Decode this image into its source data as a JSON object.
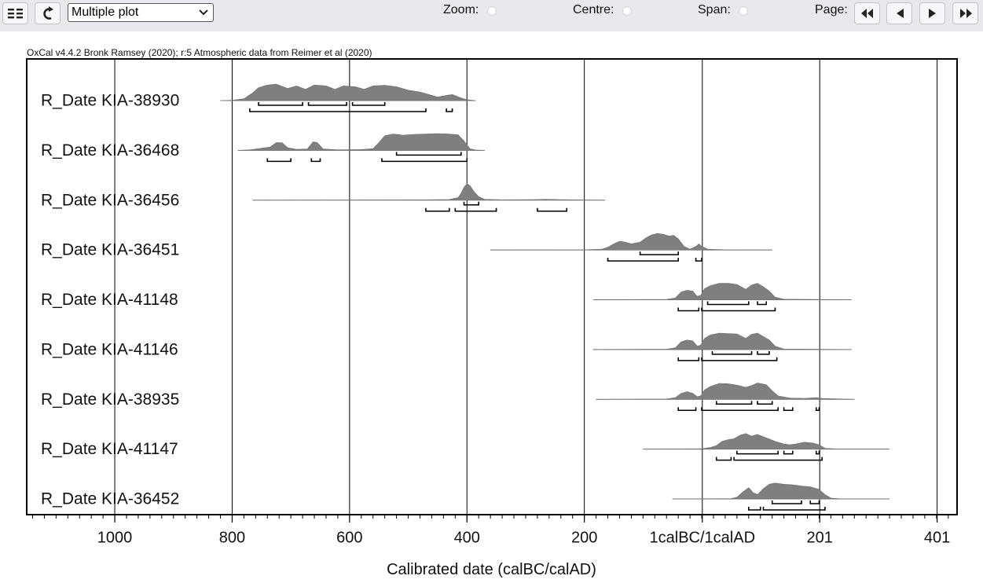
{
  "toolbar": {
    "menu_icon": "grid-menu-icon",
    "refresh_icon": "refresh-icon",
    "plot_select_value": "Multiple plot",
    "zoom_label": "Zoom:",
    "centre_label": "Centre:",
    "span_label": "Span:",
    "page_label": "Page:",
    "page_buttons": [
      "first-page-icon",
      "previous-page-icon",
      "next-page-icon",
      "last-page-icon"
    ]
  },
  "chart_data": {
    "type": "multiple-plot",
    "caption": "OxCal v4.4.2 Bronk Ramsey (2020); r:5 Atmospheric data from Reimer et al (2020)",
    "xlabel": "Calibrated date (calBC/calAD)",
    "xaxis": {
      "min": -1150,
      "max": 435,
      "ticks": [
        {
          "value": -1000,
          "label": "1000"
        },
        {
          "value": -800,
          "label": "800"
        },
        {
          "value": -600,
          "label": "600"
        },
        {
          "value": -400,
          "label": "400"
        },
        {
          "value": -200,
          "label": "200"
        },
        {
          "value": 1,
          "label": "1calBC/1calAD"
        },
        {
          "value": 201,
          "label": "201"
        },
        {
          "value": 401,
          "label": "401"
        }
      ],
      "minor_step": 20,
      "grid": true
    },
    "dist_color": "#7f7f7f",
    "series": [
      {
        "name": "R_Date KIA-38930",
        "range": [
          -820,
          -385
        ],
        "profile": [
          [
            -820,
            0
          ],
          [
            -800,
            0.02
          ],
          [
            -780,
            0.1
          ],
          [
            -765,
            0.45
          ],
          [
            -755,
            0.75
          ],
          [
            -740,
            0.9
          ],
          [
            -725,
            0.95
          ],
          [
            -705,
            0.7
          ],
          [
            -690,
            0.85
          ],
          [
            -675,
            0.65
          ],
          [
            -660,
            0.9
          ],
          [
            -640,
            0.85
          ],
          [
            -625,
            0.65
          ],
          [
            -610,
            0.85
          ],
          [
            -590,
            0.8
          ],
          [
            -575,
            0.65
          ],
          [
            -560,
            0.85
          ],
          [
            -540,
            0.88
          ],
          [
            -520,
            0.8
          ],
          [
            -500,
            0.6
          ],
          [
            -480,
            0.5
          ],
          [
            -465,
            0.35
          ],
          [
            -450,
            0.2
          ],
          [
            -435,
            0.3
          ],
          [
            -425,
            0.35
          ],
          [
            -410,
            0.15
          ],
          [
            -400,
            0.05
          ],
          [
            -385,
            0
          ]
        ],
        "hpd68": [
          [
            -755,
            -680
          ],
          [
            -670,
            -605
          ],
          [
            -595,
            -540
          ]
        ],
        "hpd95": [
          [
            -770,
            -470
          ],
          [
            -435,
            -425
          ]
        ]
      },
      {
        "name": "R_Date KIA-36468",
        "range": [
          -790,
          -370
        ],
        "profile": [
          [
            -790,
            0
          ],
          [
            -770,
            0.03
          ],
          [
            -750,
            0.12
          ],
          [
            -735,
            0.2
          ],
          [
            -725,
            0.45
          ],
          [
            -715,
            0.45
          ],
          [
            -705,
            0.15
          ],
          [
            -690,
            0.06
          ],
          [
            -672,
            0.08
          ],
          [
            -662,
            0.5
          ],
          [
            -655,
            0.45
          ],
          [
            -645,
            0.08
          ],
          [
            -620,
            0.03
          ],
          [
            -580,
            0.05
          ],
          [
            -560,
            0.1
          ],
          [
            -550,
            0.45
          ],
          [
            -540,
            0.85
          ],
          [
            -525,
            0.95
          ],
          [
            -510,
            0.88
          ],
          [
            -490,
            0.92
          ],
          [
            -470,
            0.95
          ],
          [
            -450,
            0.97
          ],
          [
            -430,
            0.95
          ],
          [
            -415,
            0.9
          ],
          [
            -405,
            0.55
          ],
          [
            -395,
            0.1
          ],
          [
            -385,
            0.02
          ],
          [
            -370,
            0
          ]
        ],
        "hpd68": [
          [
            -520,
            -410
          ]
        ],
        "hpd95": [
          [
            -740,
            -700
          ],
          [
            -665,
            -650
          ],
          [
            -545,
            -400
          ]
        ]
      },
      {
        "name": "R_Date KIA-36456",
        "range": [
          -765,
          -165
        ],
        "profile": [
          [
            -765,
            0
          ],
          [
            -600,
            0.01
          ],
          [
            -470,
            0.02
          ],
          [
            -430,
            0.04
          ],
          [
            -415,
            0.15
          ],
          [
            -410,
            0.4
          ],
          [
            -405,
            0.75
          ],
          [
            -400,
            0.95
          ],
          [
            -395,
            0.85
          ],
          [
            -388,
            0.5
          ],
          [
            -380,
            0.2
          ],
          [
            -370,
            0.05
          ],
          [
            -340,
            0.02
          ],
          [
            -290,
            0.03
          ],
          [
            -265,
            0.05
          ],
          [
            -240,
            0.03
          ],
          [
            -200,
            0.01
          ],
          [
            -165,
            0
          ]
        ],
        "hpd68": [
          [
            -405,
            -380
          ]
        ],
        "hpd95": [
          [
            -470,
            -430
          ],
          [
            -420,
            -350
          ],
          [
            -280,
            -230
          ]
        ]
      },
      {
        "name": "R_Date KIA-36451",
        "range": [
          -360,
          120
        ],
        "profile": [
          [
            -360,
            0
          ],
          [
            -200,
            0.01
          ],
          [
            -170,
            0.05
          ],
          [
            -160,
            0.15
          ],
          [
            -150,
            0.35
          ],
          [
            -140,
            0.5
          ],
          [
            -130,
            0.45
          ],
          [
            -120,
            0.35
          ],
          [
            -105,
            0.45
          ],
          [
            -95,
            0.7
          ],
          [
            -85,
            0.88
          ],
          [
            -75,
            0.95
          ],
          [
            -65,
            0.9
          ],
          [
            -55,
            0.8
          ],
          [
            -48,
            0.85
          ],
          [
            -40,
            0.65
          ],
          [
            -30,
            0.2
          ],
          [
            -20,
            0.05
          ],
          [
            -10,
            0.2
          ],
          [
            -5,
            0.35
          ],
          [
            0,
            0.2
          ],
          [
            10,
            0.05
          ],
          [
            40,
            0.01
          ],
          [
            120,
            0
          ]
        ],
        "hpd68": [
          [
            -105,
            -40
          ]
        ],
        "hpd95": [
          [
            -160,
            -40
          ],
          [
            -10,
            0
          ]
        ]
      },
      {
        "name": "R_Date KIA-41148",
        "range": [
          -185,
          255
        ],
        "profile": [
          [
            -185,
            0
          ],
          [
            -60,
            0.02
          ],
          [
            -45,
            0.1
          ],
          [
            -35,
            0.45
          ],
          [
            -25,
            0.55
          ],
          [
            -15,
            0.5
          ],
          [
            -8,
            0.2
          ],
          [
            -2,
            0.25
          ],
          [
            5,
            0.65
          ],
          [
            15,
            0.82
          ],
          [
            30,
            0.95
          ],
          [
            45,
            0.95
          ],
          [
            60,
            0.88
          ],
          [
            75,
            0.6
          ],
          [
            85,
            0.85
          ],
          [
            95,
            0.95
          ],
          [
            105,
            0.75
          ],
          [
            115,
            0.5
          ],
          [
            125,
            0.15
          ],
          [
            140,
            0.03
          ],
          [
            255,
            0
          ]
        ],
        "hpd68": [
          [
            10,
            80
          ],
          [
            95,
            110
          ]
        ],
        "hpd95": [
          [
            -40,
            -5
          ],
          [
            0,
            125
          ]
        ]
      },
      {
        "name": "R_Date KIA-41146",
        "range": [
          -185,
          255
        ],
        "profile": [
          [
            -185,
            0
          ],
          [
            -60,
            0.02
          ],
          [
            -45,
            0.1
          ],
          [
            -35,
            0.45
          ],
          [
            -25,
            0.55
          ],
          [
            -15,
            0.5
          ],
          [
            -8,
            0.2
          ],
          [
            -2,
            0.25
          ],
          [
            5,
            0.65
          ],
          [
            15,
            0.85
          ],
          [
            30,
            0.95
          ],
          [
            45,
            0.92
          ],
          [
            60,
            0.9
          ],
          [
            75,
            0.65
          ],
          [
            85,
            0.88
          ],
          [
            95,
            0.95
          ],
          [
            105,
            0.75
          ],
          [
            115,
            0.55
          ],
          [
            125,
            0.2
          ],
          [
            140,
            0.03
          ],
          [
            255,
            0
          ]
        ],
        "hpd68": [
          [
            18,
            85
          ],
          [
            95,
            115
          ]
        ],
        "hpd95": [
          [
            -40,
            -5
          ],
          [
            0,
            128
          ]
        ]
      },
      {
        "name": "R_Date KIA-38935",
        "range": [
          -180,
          260
        ],
        "profile": [
          [
            -180,
            0
          ],
          [
            -60,
            0.02
          ],
          [
            -45,
            0.1
          ],
          [
            -35,
            0.35
          ],
          [
            -25,
            0.45
          ],
          [
            -15,
            0.35
          ],
          [
            -8,
            0.15
          ],
          [
            -2,
            0.2
          ],
          [
            5,
            0.55
          ],
          [
            15,
            0.75
          ],
          [
            30,
            0.92
          ],
          [
            45,
            0.9
          ],
          [
            60,
            0.82
          ],
          [
            75,
            0.7
          ],
          [
            85,
            0.8
          ],
          [
            95,
            0.95
          ],
          [
            110,
            0.85
          ],
          [
            120,
            0.5
          ],
          [
            130,
            0.2
          ],
          [
            150,
            0.08
          ],
          [
            175,
            0.05
          ],
          [
            195,
            0.1
          ],
          [
            205,
            0.05
          ],
          [
            260,
            0
          ]
        ],
        "hpd68": [
          [
            25,
            85
          ],
          [
            95,
            120
          ]
        ],
        "hpd95": [
          [
            -40,
            -10
          ],
          [
            0,
            130
          ],
          [
            140,
            155
          ],
          [
            195,
            200
          ]
        ]
      },
      {
        "name": "R_Date KIA-41147",
        "range": [
          -100,
          320
        ],
        "profile": [
          [
            -100,
            0
          ],
          [
            0,
            0.02
          ],
          [
            15,
            0.1
          ],
          [
            25,
            0.2
          ],
          [
            35,
            0.45
          ],
          [
            45,
            0.55
          ],
          [
            55,
            0.6
          ],
          [
            65,
            0.8
          ],
          [
            75,
            0.9
          ],
          [
            85,
            0.75
          ],
          [
            95,
            0.85
          ],
          [
            110,
            0.65
          ],
          [
            125,
            0.45
          ],
          [
            140,
            0.3
          ],
          [
            150,
            0.25
          ],
          [
            160,
            0.3
          ],
          [
            175,
            0.4
          ],
          [
            190,
            0.35
          ],
          [
            200,
            0.25
          ],
          [
            210,
            0.05
          ],
          [
            230,
            0.01
          ],
          [
            320,
            0
          ]
        ],
        "hpd68": [
          [
            60,
            130
          ],
          [
            140,
            155
          ],
          [
            195,
            200
          ]
        ],
        "hpd95": [
          [
            25,
            50
          ],
          [
            55,
            205
          ]
        ]
      },
      {
        "name": "R_Date KIA-36452",
        "range": [
          -50,
          320
        ],
        "profile": [
          [
            -50,
            0
          ],
          [
            50,
            0.02
          ],
          [
            60,
            0.1
          ],
          [
            70,
            0.4
          ],
          [
            80,
            0.65
          ],
          [
            88,
            0.35
          ],
          [
            95,
            0.25
          ],
          [
            105,
            0.6
          ],
          [
            115,
            0.85
          ],
          [
            125,
            0.92
          ],
          [
            140,
            0.85
          ],
          [
            155,
            0.82
          ],
          [
            170,
            0.75
          ],
          [
            185,
            0.7
          ],
          [
            200,
            0.55
          ],
          [
            210,
            0.25
          ],
          [
            220,
            0.05
          ],
          [
            235,
            0.01
          ],
          [
            320,
            0
          ]
        ],
        "hpd68": [
          [
            120,
            170
          ],
          [
            185,
            200
          ]
        ],
        "hpd95": [
          [
            80,
            100
          ],
          [
            105,
            210
          ]
        ]
      }
    ]
  }
}
